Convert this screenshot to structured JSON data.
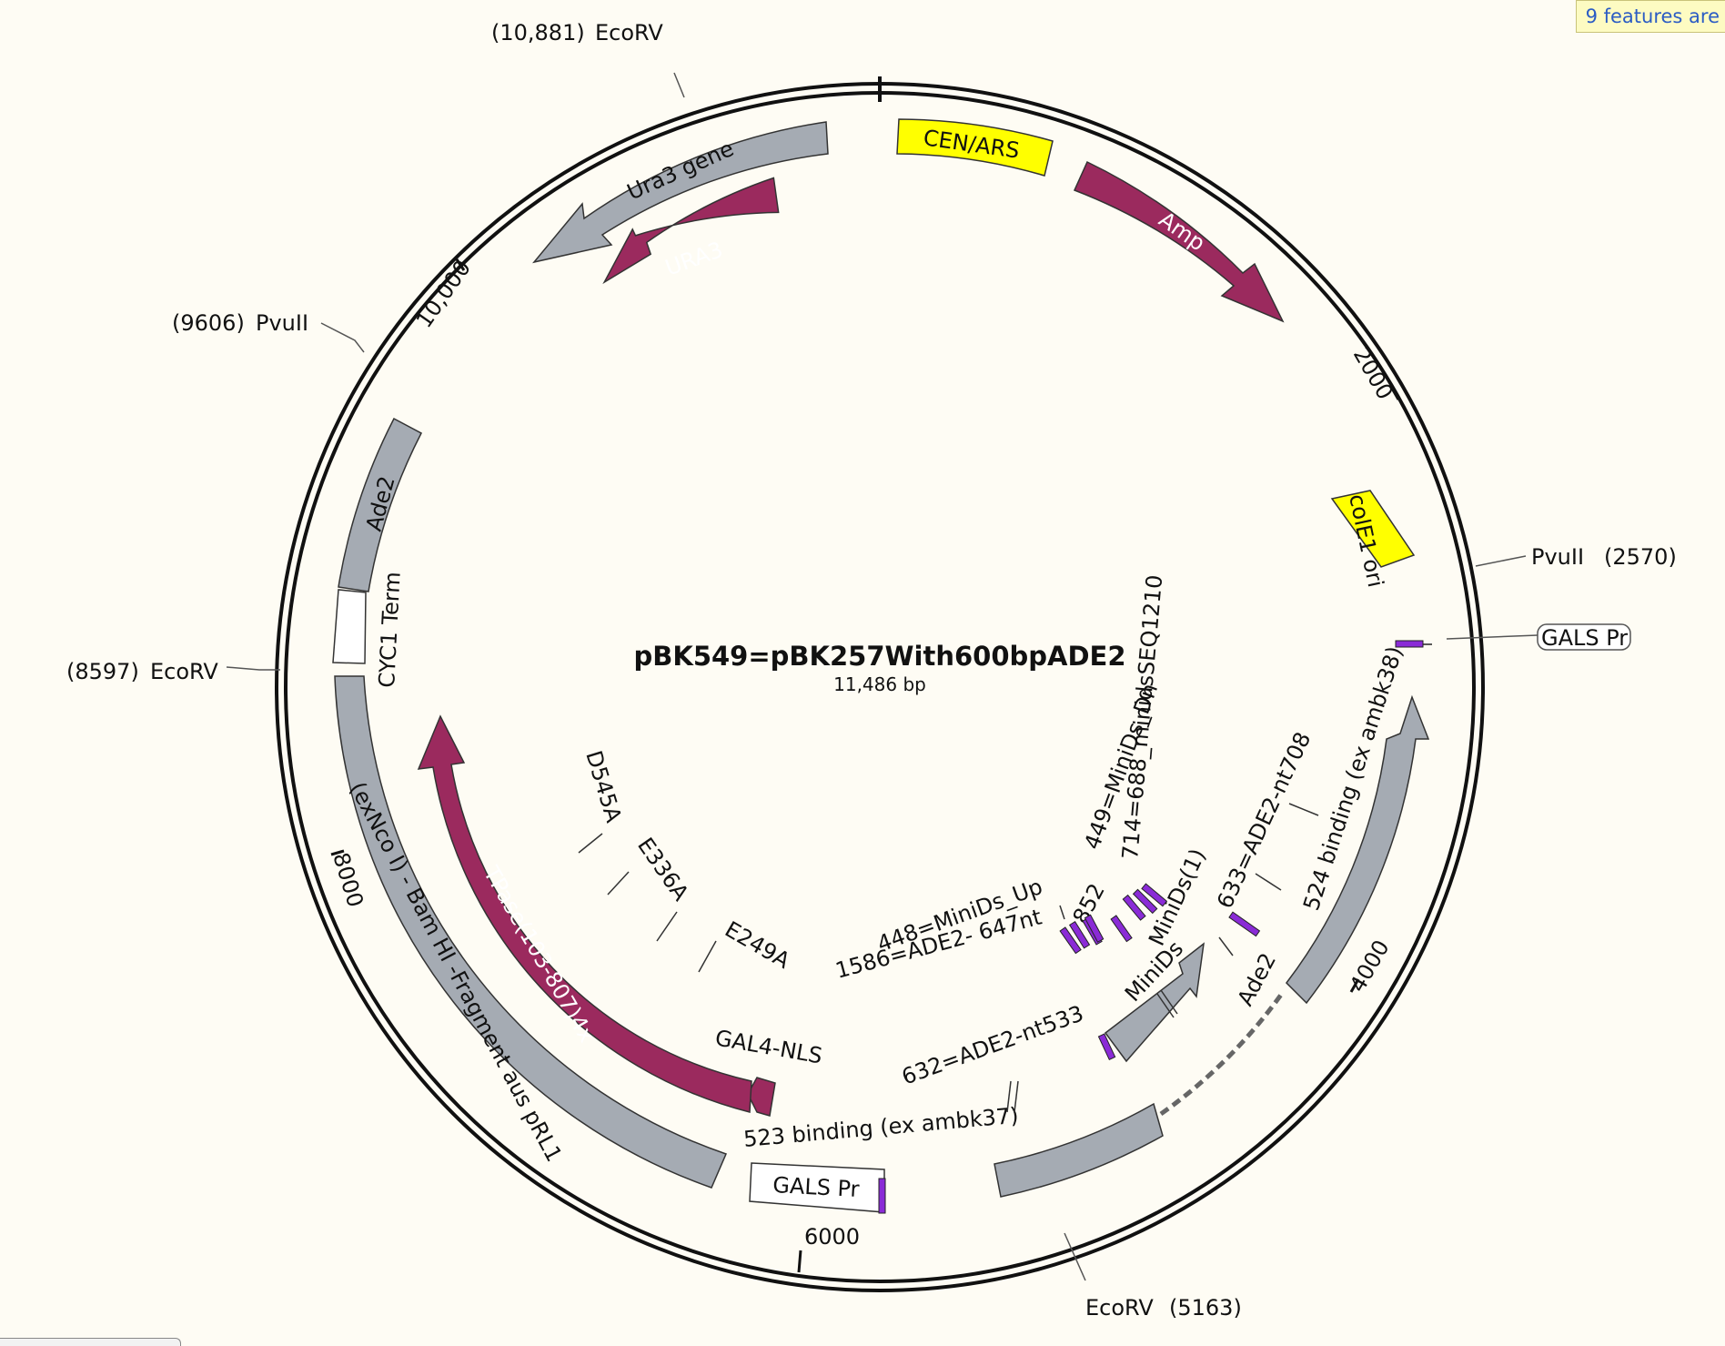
{
  "map": {
    "name": "pBK549=pBK257With600bpADE2",
    "length_text": "11,486 bp",
    "length_bp": 11486
  },
  "notice": "9 features are",
  "ticks": [
    "2000",
    "4000",
    "6000",
    "8000",
    "10,000"
  ],
  "sites": [
    {
      "id": "ecorv-10881",
      "enzyme": "EcoRV",
      "pos": "(10,881)"
    },
    {
      "id": "pvuii-9606",
      "enzyme": "PvuII",
      "pos": "(9606)"
    },
    {
      "id": "ecorv-8597",
      "enzyme": "EcoRV",
      "pos": "(8597)"
    },
    {
      "id": "pvuii-2570",
      "enzyme": "PvuII",
      "pos": "(2570)"
    },
    {
      "id": "ecorv-5163",
      "enzyme": "EcoRV",
      "pos": "(5163)"
    }
  ],
  "features": [
    {
      "id": "cen-ars",
      "label": "CEN/ARS",
      "color": "#ffff00",
      "kind": "box"
    },
    {
      "id": "amp",
      "label": "Amp",
      "color": "#9b2a5e",
      "kind": "arrow"
    },
    {
      "id": "cole1-ori",
      "label": "colE1 ori",
      "color": "#ffff00",
      "kind": "box"
    },
    {
      "id": "gals-pr-small",
      "label": "GALS Pr",
      "color": "#ffffff",
      "kind": "callout"
    },
    {
      "id": "binding-524",
      "label": "524 binding (ex ambk38)",
      "color": "#a5abb3",
      "kind": "arrow"
    },
    {
      "id": "ade2-segment",
      "label": "Ade2",
      "color": "#a5abb3",
      "kind": "arrow"
    },
    {
      "id": "minids",
      "label": "MiniDs",
      "color": "#a5abb3",
      "kind": "arrow"
    },
    {
      "id": "gals-pr",
      "label": "GALS Pr",
      "color": "#ffffff",
      "kind": "box"
    },
    {
      "id": "binding-523",
      "label": "523 binding (ex ambk37)",
      "color": "#a5abb3",
      "kind": "box"
    },
    {
      "id": "gal4-nls",
      "label": "GAL4-NLS",
      "color": "#9b2a5e",
      "kind": "arrow"
    },
    {
      "id": "tpase",
      "label": "TPase(103-807)4x",
      "color": "#9b2a5e",
      "kind": "arrow"
    },
    {
      "id": "bam-hi-fragment",
      "label": "(exNco I) - Bam HI -Fragment aus pRL1",
      "color": "#a5abb3",
      "kind": "box"
    },
    {
      "id": "cyc1-term",
      "label": "CYC1 Term",
      "color": "#ffffff",
      "kind": "box"
    },
    {
      "id": "ade2",
      "label": "Ade2",
      "color": "#a5abb3",
      "kind": "box"
    },
    {
      "id": "ura3-gene",
      "label": "Ura3 gene",
      "color": "#a5abb3",
      "kind": "arrow"
    },
    {
      "id": "ura3",
      "label": "URA3",
      "color": "#9b2a5e",
      "kind": "arrow"
    }
  ],
  "inner_labels": [
    {
      "id": "d545a",
      "label": "D545A"
    },
    {
      "id": "e336a",
      "label": "E336A"
    },
    {
      "id": "e249a",
      "label": "E249A"
    },
    {
      "id": "minids-dn",
      "label": "449=MiniDs_Dn"
    },
    {
      "id": "minids-seq",
      "label": "714=688_minidsSEQ1210"
    },
    {
      "id": "ade2-nt708",
      "label": "633=ADE2-nt708"
    },
    {
      "id": "minids-1",
      "label": "MiniDs(1)"
    },
    {
      "id": "lbl-852",
      "label": "852"
    },
    {
      "id": "minids-up",
      "label": "448=MiniDs_Up"
    },
    {
      "id": "ade2-647",
      "label": "1586=ADE2- 647nt"
    },
    {
      "id": "ade2-nt533",
      "label": "632=ADE2-nt533"
    }
  ],
  "colors": {
    "purple_primer": "#8a2bd6",
    "grey": "#a5abb3",
    "maroon": "#9b2a5e",
    "yellow": "#ffff00",
    "background": "#fefcf4"
  }
}
